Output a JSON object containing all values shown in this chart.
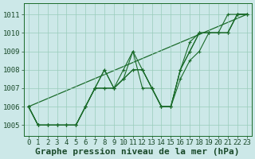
{
  "title": "Graphe pression niveau de la mer (hPa)",
  "bg_color": "#cce8e8",
  "grid_color": "#99ccbb",
  "line_color": "#1a6b2a",
  "text_color": "#1a4a2a",
  "xlim": [
    -0.5,
    23.5
  ],
  "ylim": [
    1004.4,
    1011.6
  ],
  "yticks": [
    1005,
    1006,
    1007,
    1008,
    1009,
    1010,
    1011
  ],
  "xticks": [
    0,
    1,
    2,
    3,
    4,
    5,
    6,
    7,
    8,
    9,
    10,
    11,
    12,
    13,
    14,
    15,
    16,
    17,
    18,
    19,
    20,
    21,
    22,
    23
  ],
  "series": [
    [
      1006.0,
      1005.0,
      1005.0,
      1005.0,
      1005.0,
      1005.0,
      1006.0,
      1007.0,
      1008.0,
      1007.0,
      1008.0,
      1009.0,
      1008.0,
      1007.0,
      1006.0,
      1006.0,
      1008.0,
      1009.0,
      1010.0,
      1010.0,
      1010.0,
      1010.0,
      1011.0,
      1011.0
    ],
    [
      1006.0,
      1005.0,
      1005.0,
      1005.0,
      1005.0,
      1005.0,
      1006.0,
      1007.0,
      1007.0,
      1007.0,
      1007.5,
      1008.0,
      1008.0,
      1007.0,
      1006.0,
      1006.0,
      1008.0,
      1009.0,
      1010.0,
      1010.0,
      1010.0,
      1010.0,
      1011.0,
      1011.0
    ],
    [
      1006.0,
      1005.0,
      1005.0,
      1005.0,
      1005.0,
      1005.0,
      1006.0,
      1007.0,
      1007.0,
      1007.0,
      1007.5,
      1008.0,
      1008.0,
      1007.0,
      1006.0,
      1006.0,
      1007.5,
      1008.5,
      1009.0,
      1010.0,
      1010.0,
      1010.0,
      1011.0,
      1011.0
    ],
    [
      1006.0,
      1005.0,
      1005.0,
      1005.0,
      1005.0,
      1005.0,
      1006.0,
      1007.0,
      1008.0,
      1007.0,
      1007.5,
      1009.0,
      1007.0,
      1007.0,
      1006.0,
      1006.0,
      1008.0,
      1009.5,
      1010.0,
      1010.0,
      1010.0,
      1011.0,
      1011.0,
      1011.0
    ]
  ],
  "trend_line": [
    1006.0,
    1011.0
  ],
  "trend_x": [
    0,
    23
  ],
  "title_fontsize": 8,
  "tick_fontsize": 6.5,
  "figsize": [
    3.2,
    2.0
  ],
  "dpi": 100
}
